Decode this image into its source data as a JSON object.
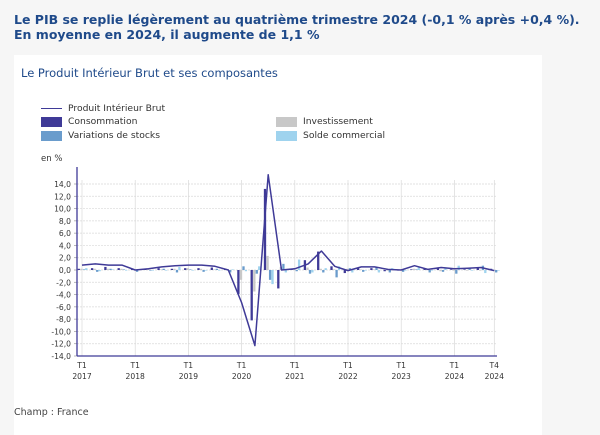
{
  "headline": {
    "line1": "Le PIB se replie légèrement au quatrième trimestre 2024 (-0,1 % après +0,4 %).",
    "line2": "En moyenne en 2024, il augmente de 1,1 %"
  },
  "panel": {
    "title": "Le Produit Intérieur Brut et ses composantes",
    "unit": "en %",
    "footer": "Champ : France"
  },
  "legend": [
    {
      "label": "Produit Intérieur Brut",
      "type": "line",
      "color": "#3f3a97"
    },
    {
      "label": "Consommation",
      "type": "bar",
      "color": "#3f3a97"
    },
    {
      "label": "Variations de stocks",
      "type": "bar",
      "color": "#6a9ccc"
    },
    {
      "label": "Investissement",
      "type": "bar",
      "color": "#c8c8c8"
    },
    {
      "label": "Solde commercial",
      "type": "bar",
      "color": "#9fd3ee"
    }
  ],
  "colors": {
    "headline": "#1f4a8a",
    "pib": "#3f3a97",
    "consommation": "#3f3a97",
    "stocks": "#6a9ccc",
    "investissement": "#c8c8c8",
    "solde": "#9fd3ee",
    "grid": "#d9d9d9",
    "axis": "#3f3a97"
  },
  "chart_data": {
    "type": "bar",
    "title": "Le Produit Intérieur Brut et ses composantes",
    "xlabel": "",
    "ylabel": "en %",
    "ylim": [
      -14,
      14
    ],
    "yticks": [
      "-14,0",
      "-12,0",
      "-10,0",
      "-8,0",
      "-6,0",
      "-4,0",
      "-2,0",
      "0,0",
      "2,0",
      "4,0",
      "6,0",
      "8,0",
      "10,0",
      "12,0",
      "14,0"
    ],
    "grid": true,
    "legend_position": "top",
    "x_tick_labels": [
      {
        "q": "T1",
        "y": "2017",
        "index": 0
      },
      {
        "q": "T1",
        "y": "2018",
        "index": 4
      },
      {
        "q": "T1",
        "y": "2019",
        "index": 8
      },
      {
        "q": "T1",
        "y": "2020",
        "index": 12
      },
      {
        "q": "T1",
        "y": "2021",
        "index": 16
      },
      {
        "q": "T1",
        "y": "2022",
        "index": 20
      },
      {
        "q": "T1",
        "y": "2023",
        "index": 24
      },
      {
        "q": "T1",
        "y": "2024",
        "index": 28
      },
      {
        "q": "T4",
        "y": "2024",
        "index": 31
      }
    ],
    "categories": [
      "2017T1",
      "2017T2",
      "2017T3",
      "2017T4",
      "2018T1",
      "2018T2",
      "2018T3",
      "2018T4",
      "2019T1",
      "2019T2",
      "2019T3",
      "2019T4",
      "2020T1",
      "2020T2",
      "2020T3",
      "2020T4",
      "2021T1",
      "2021T2",
      "2021T3",
      "2021T4",
      "2022T1",
      "2022T2",
      "2022T3",
      "2022T4",
      "2023T1",
      "2023T2",
      "2023T3",
      "2023T4",
      "2024T1",
      "2024T2",
      "2024T3",
      "2024T4"
    ],
    "series": [
      {
        "name": "Produit Intérieur Brut",
        "kind": "line",
        "values": [
          0.8,
          1.0,
          0.8,
          0.8,
          0.0,
          0.2,
          0.5,
          0.7,
          0.8,
          0.8,
          0.6,
          0.0,
          -5.3,
          -12.3,
          15.5,
          0.0,
          0.2,
          1.0,
          3.1,
          0.6,
          -0.1,
          0.5,
          0.5,
          0.1,
          0.0,
          0.7,
          0.1,
          0.4,
          0.2,
          0.3,
          0.4,
          -0.1
        ]
      },
      {
        "name": "Consommation",
        "kind": "bar",
        "values": [
          0.2,
          0.3,
          0.5,
          0.3,
          0.1,
          0.1,
          0.3,
          0.2,
          0.3,
          0.3,
          0.4,
          0.2,
          -3.9,
          -8.2,
          13.2,
          -3.0,
          0.1,
          1.6,
          3.0,
          0.6,
          -0.5,
          0.3,
          0.3,
          -0.2,
          0.0,
          0.1,
          0.2,
          0.3,
          0.1,
          0.1,
          0.4,
          0.2
        ]
      },
      {
        "name": "Investissement",
        "kind": "bar",
        "values": [
          0.2,
          0.2,
          0.2,
          0.2,
          0.1,
          0.2,
          0.1,
          0.2,
          0.3,
          0.2,
          0.1,
          0.1,
          -1.6,
          -3.5,
          2.3,
          0.5,
          0.3,
          0.4,
          0.2,
          0.1,
          0.2,
          0.1,
          0.1,
          -0.1,
          0.1,
          0.2,
          0.1,
          -0.2,
          -0.1,
          -0.1,
          -0.1,
          -0.1
        ]
      },
      {
        "name": "Variations de stocks",
        "kind": "bar",
        "values": [
          0.1,
          -0.3,
          0.2,
          0.1,
          -0.3,
          0.0,
          0.2,
          -0.4,
          0.1,
          -0.3,
          0.2,
          -0.4,
          0.6,
          -0.6,
          -1.6,
          1.0,
          -0.2,
          -0.6,
          -0.4,
          -1.2,
          0.3,
          -0.3,
          0.4,
          -0.4,
          -0.3,
          0.1,
          -0.4,
          -0.3,
          -0.6,
          0.4,
          0.7,
          -0.4
        ]
      },
      {
        "name": "Solde commercial",
        "kind": "bar",
        "values": [
          0.3,
          -0.2,
          0.1,
          0.0,
          0.1,
          0.0,
          0.0,
          0.5,
          0.0,
          0.0,
          -0.1,
          0.1,
          -0.2,
          0.6,
          -2.3,
          -0.4,
          1.7,
          -0.4,
          0.3,
          0.6,
          -0.4,
          0.0,
          -0.4,
          0.3,
          0.0,
          0.4,
          0.0,
          0.4,
          0.7,
          -0.1,
          -0.5,
          0.0
        ]
      }
    ]
  }
}
